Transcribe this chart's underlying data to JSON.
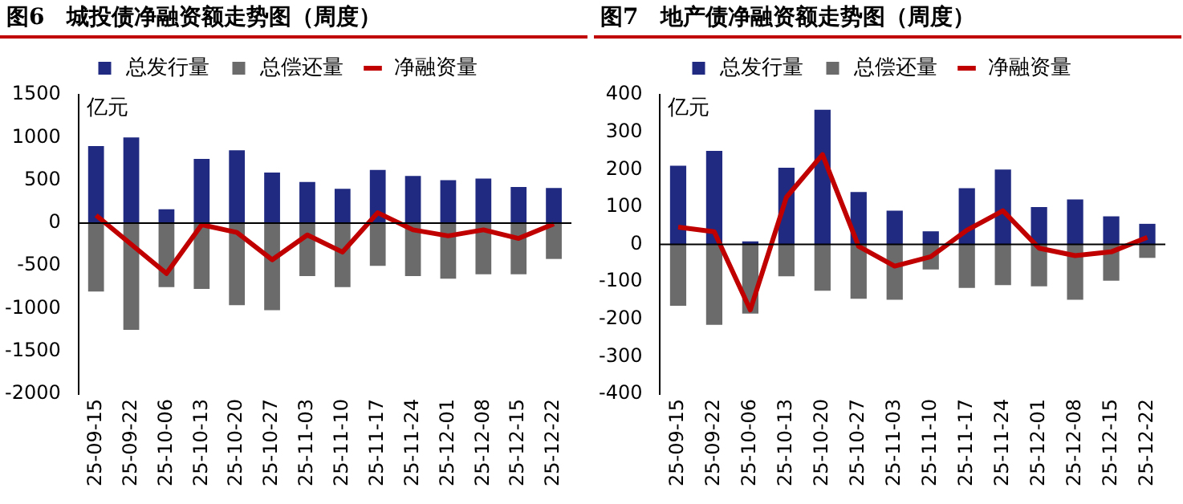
{
  "chart_data": [
    {
      "type": "bar",
      "stacked": true,
      "title": "图6　城投债净融资额走势图（周度）",
      "ylabel": "亿元",
      "legend": "top",
      "categories": [
        "25-09-15",
        "25-09-22",
        "25-10-06",
        "25-10-13",
        "25-10-20",
        "25-10-27",
        "25-11-03",
        "25-11-10",
        "25-11-17",
        "25-11-24",
        "25-12-01",
        "25-12-08",
        "25-12-15",
        "25-12-22"
      ],
      "ylim": [
        -2000,
        1500
      ],
      "yticks": [
        -2000,
        -1500,
        -1000,
        -500,
        0,
        500,
        1000,
        1500
      ],
      "series": [
        {
          "name": "总发行量",
          "color": "#1f2a80",
          "values": [
            900,
            1000,
            160,
            750,
            850,
            590,
            480,
            400,
            620,
            550,
            500,
            520,
            420,
            410
          ]
        },
        {
          "name": "总偿还量",
          "color": "#6b6b6b",
          "values": [
            -800,
            -1250,
            -750,
            -770,
            -960,
            -1020,
            -620,
            -750,
            -500,
            -620,
            -650,
            -600,
            -600,
            -420
          ]
        },
        {
          "name": "净融资量",
          "type": "line",
          "color": "#c00000",
          "values": [
            90,
            -250,
            -590,
            -20,
            -110,
            -430,
            -140,
            -340,
            120,
            -80,
            -150,
            -80,
            -180,
            -10
          ]
        }
      ]
    },
    {
      "type": "bar",
      "stacked": true,
      "title": "图7　地产债净融资额走势图（周度）",
      "ylabel": "亿元",
      "legend": "top",
      "categories": [
        "25-09-15",
        "25-09-22",
        "25-10-06",
        "25-10-13",
        "25-10-20",
        "25-10-27",
        "25-11-03",
        "25-11-10",
        "25-11-17",
        "25-11-24",
        "25-12-01",
        "25-12-08",
        "25-12-15",
        "25-12-22"
      ],
      "ylim": [
        -400,
        400
      ],
      "yticks": [
        -400,
        -300,
        -200,
        -100,
        0,
        100,
        200,
        300,
        400
      ],
      "series": [
        {
          "name": "总发行量",
          "color": "#1f2a80",
          "values": [
            210,
            250,
            8,
            205,
            360,
            140,
            90,
            35,
            150,
            200,
            100,
            120,
            75,
            55
          ]
        },
        {
          "name": "总偿还量",
          "color": "#6b6b6b",
          "values": [
            -164,
            -215,
            -185,
            -85,
            -124,
            -145,
            -148,
            -67,
            -116,
            -109,
            -112,
            -148,
            -97,
            -36
          ]
        },
        {
          "name": "净融资量",
          "type": "line",
          "color": "#c00000",
          "values": [
            46,
            34,
            -175,
            126,
            240,
            -5,
            -58,
            -33,
            38,
            90,
            -10,
            -30,
            -20,
            19
          ]
        }
      ]
    }
  ]
}
